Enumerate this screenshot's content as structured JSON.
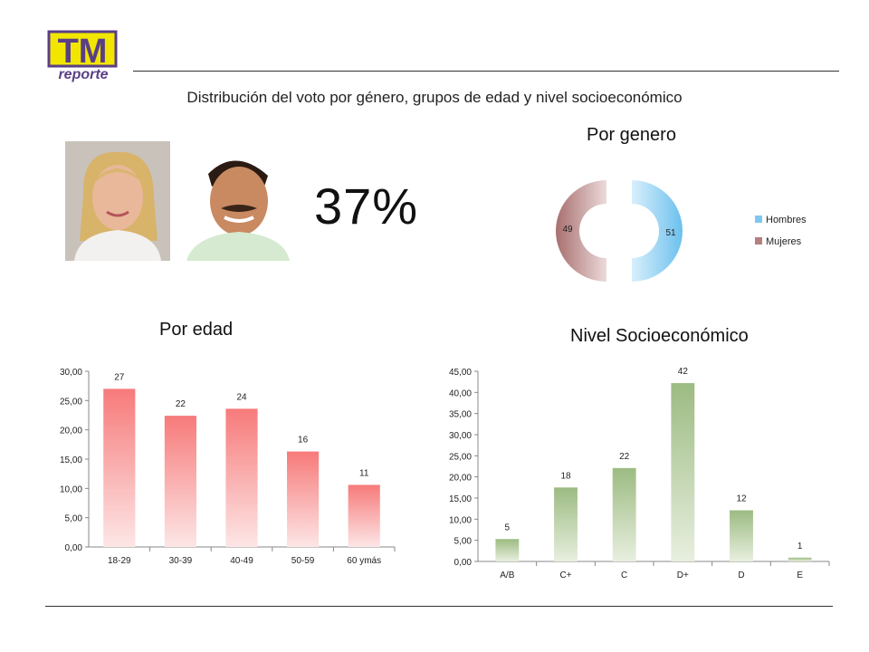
{
  "logo": {
    "main": "TM",
    "sub": "reporte"
  },
  "subtitle": "Distribución del voto por género, grupos de edad y nivel socioeconómico",
  "headline_value": "37%",
  "colors": {
    "pink_bar": "#f77a7a",
    "green_bar": "#9cbb82",
    "hombres": "#7cc8f0",
    "mujeres": "#b57f7f",
    "logo_yellow": "#f2e600",
    "logo_purple": "#5a3f86"
  },
  "chart_data": [
    {
      "id": "gender",
      "type": "pie",
      "title": "Por genero",
      "categories": [
        "Hombres",
        "Mujeres"
      ],
      "values": [
        51,
        49
      ],
      "colors": [
        "#7cc8f0",
        "#b57f7f"
      ],
      "legend": "right"
    },
    {
      "id": "age",
      "type": "bar",
      "title": "Por edad",
      "categories": [
        "18-29",
        "30-39",
        "40-49",
        "50-59",
        "60 ymás"
      ],
      "values": [
        27,
        22,
        24,
        16,
        11
      ],
      "display_values": [
        27.0,
        22.4,
        23.6,
        16.3,
        10.6
      ],
      "ylim": [
        0,
        30
      ],
      "yticks": [
        "0,00",
        "5,00",
        "10,00",
        "15,00",
        "20,00",
        "25,00",
        "30,00"
      ],
      "grid": false
    },
    {
      "id": "nse",
      "type": "bar",
      "title": "Nivel Socioeconómico",
      "categories": [
        "A/B",
        "C+",
        "C",
        "D+",
        "D",
        "E"
      ],
      "values": [
        5,
        18,
        22,
        42,
        12,
        1
      ],
      "display_values": [
        5.3,
        17.5,
        22.1,
        42.2,
        12.1,
        0.9
      ],
      "ylim": [
        0,
        45
      ],
      "yticks": [
        "0,00",
        "5,00",
        "10,00",
        "15,00",
        "20,00",
        "25,00",
        "30,00",
        "35,00",
        "40,00",
        "45,00"
      ],
      "grid": false
    }
  ]
}
